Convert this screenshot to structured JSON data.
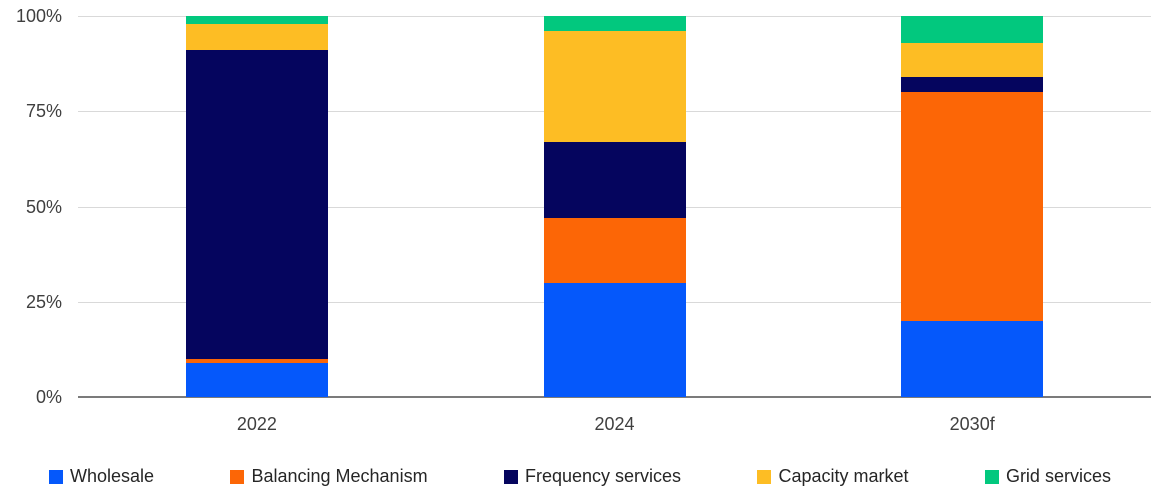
{
  "chart_data": {
    "type": "bar",
    "variant": "stacked-100-percent",
    "title": "",
    "categories": [
      "2022",
      "2024",
      "2030f"
    ],
    "series": [
      {
        "name": "Wholesale",
        "color": "#0558FB",
        "values": [
          9,
          30,
          20
        ]
      },
      {
        "name": "Balancing Mechanism",
        "color": "#FC6606",
        "values": [
          1,
          17,
          60
        ]
      },
      {
        "name": "Frequency services",
        "color": "#05055E",
        "values": [
          81,
          20,
          4
        ]
      },
      {
        "name": "Capacity market",
        "color": "#FDBD24",
        "values": [
          7,
          29,
          9
        ]
      },
      {
        "name": "Grid services",
        "color": "#02C87E",
        "values": [
          2,
          4,
          7
        ]
      }
    ],
    "y_axis": {
      "min": 0,
      "max": 100,
      "unit": "%",
      "tick_labels": [
        "0%",
        "25%",
        "50%",
        "75%",
        "100%"
      ],
      "tick_values": [
        0,
        25,
        50,
        75,
        100
      ]
    },
    "grid": true,
    "legend_position": "bottom"
  },
  "ui_colors": {
    "gridline": "#d9d9d9",
    "axis_line": "#7b7b7b",
    "tick_text": "#3f3f3f",
    "legend_text": "#262626",
    "background": "#ffffff"
  }
}
